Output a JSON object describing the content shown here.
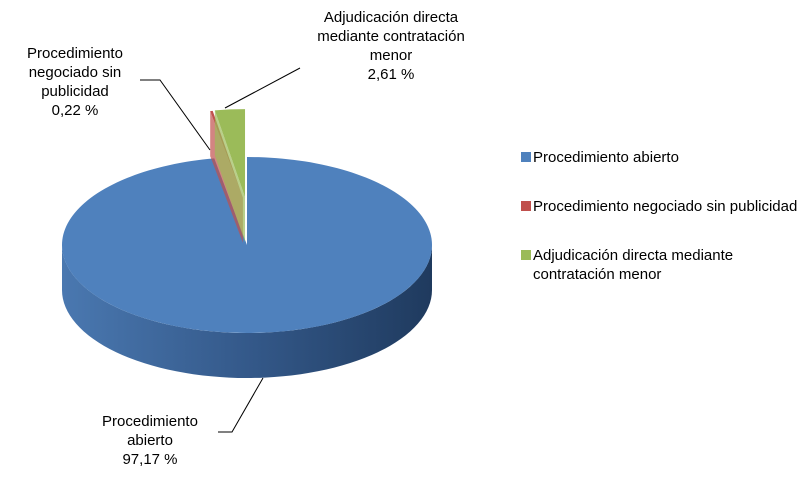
{
  "chart_data": {
    "type": "pie3d",
    "categories": [
      "Procedimiento abierto",
      "Procedimiento negociado sin publicidad",
      "Adjudicación directa mediante contratación menor"
    ],
    "values": [
      97.17,
      0.22,
      2.61
    ],
    "value_labels": [
      "97,17 %",
      "0,22 %",
      "2,61 %"
    ],
    "colors": [
      "#4f81bd",
      "#c0504d",
      "#9bbb59"
    ],
    "legend": "right"
  }
}
